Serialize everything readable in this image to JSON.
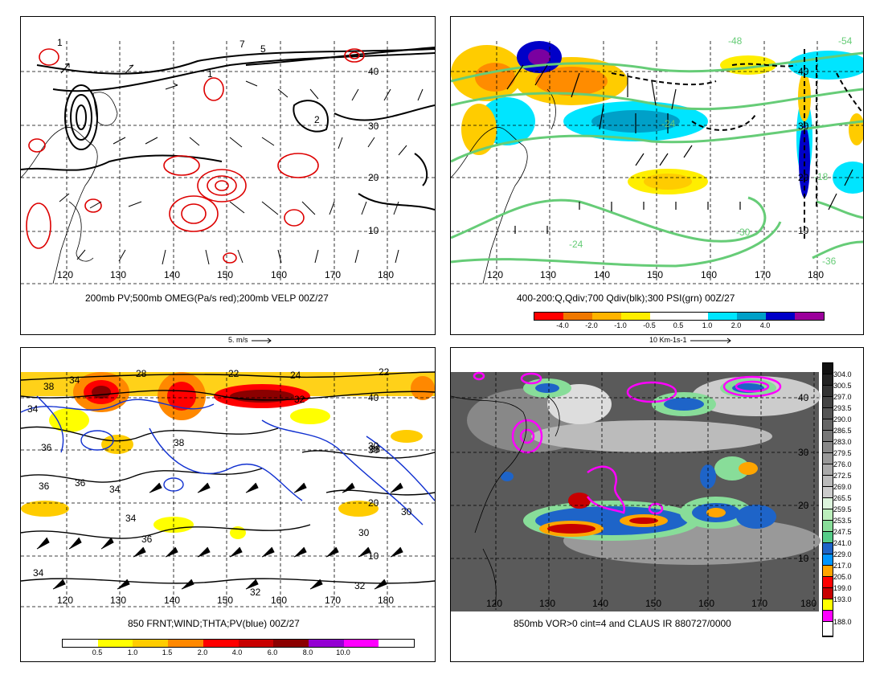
{
  "panels": {
    "tl": {
      "caption": "200mb PV;500mb OMEG(Pa/s red);200mb VELP 00Z/27",
      "scale": "5. m/s",
      "lons": [
        "120",
        "130",
        "140",
        "150",
        "160",
        "170",
        "180"
      ],
      "lats": [
        "40",
        "30",
        "20",
        "10"
      ],
      "contour_labels": [
        "1",
        "1",
        "7",
        "5",
        "2"
      ]
    },
    "tr": {
      "caption": "400-200:Q,Qdiv;700 Qdiv(blk);300 PSI(grn) 00Z/27",
      "scale": "10 Km-1s-1",
      "lons": [
        "120",
        "130",
        "140",
        "150",
        "160",
        "170",
        "180"
      ],
      "lats": [
        "40",
        "30",
        "20",
        "10"
      ],
      "psi_labels": [
        "-48",
        "-54",
        "-24",
        "-24",
        "-30",
        "-36",
        "-18"
      ],
      "colorbar": {
        "labels": [
          "-4.0",
          "-2.0",
          "-1.0",
          "-0.5",
          "0.5",
          "1.0",
          "2.0",
          "4.0"
        ],
        "colors": [
          "#ff0000",
          "#f07800",
          "#ffb400",
          "#ffee00",
          "#ffffff",
          "#ffffff",
          "#00e5ff",
          "#00a0c8",
          "#0000c8",
          "#9b009b"
        ]
      }
    },
    "bl": {
      "caption": "850 FRNT;WIND;THTA;PV(blue) 00Z/27",
      "lons": [
        "120",
        "130",
        "140",
        "150",
        "160",
        "170",
        "180"
      ],
      "lats": [
        "40",
        "30",
        "20",
        "10"
      ],
      "theta_labels": [
        "34",
        "28",
        "22",
        "24",
        "22",
        "38",
        "32",
        "34",
        "36",
        "38",
        "36",
        "34",
        "34",
        "36",
        "30",
        "30",
        "34",
        "32",
        "32",
        "38",
        "30",
        "36"
      ],
      "colorbar": {
        "labels": [
          "0.5",
          "1.0",
          "1.5",
          "2.0",
          "4.0",
          "6.0",
          "8.0",
          "10.0"
        ],
        "colors": [
          "#ffffff",
          "#ffff00",
          "#ffcc00",
          "#ff8800",
          "#ff0000",
          "#c80000",
          "#8b0000",
          "#9400d3",
          "#ff00ff",
          "#ffffff"
        ]
      }
    },
    "br": {
      "caption": "850mb VOR>0 cint=4 and CLAUS IR 880727/0000",
      "lons": [
        "120",
        "130",
        "140",
        "150",
        "160",
        "170",
        "180"
      ],
      "lats": [
        "40",
        "30",
        "20",
        "10"
      ],
      "colorbar": {
        "labels": [
          "304.0",
          "300.5",
          "297.0",
          "293.5",
          "290.0",
          "286.5",
          "283.0",
          "279.5",
          "276.0",
          "272.5",
          "269.0",
          "265.5",
          "259.5",
          "253.5",
          "247.5",
          "241.0",
          "229.0",
          "217.0",
          "205.0",
          "199.0",
          "193.0",
          "188.0"
        ],
        "colors": [
          "#111111",
          "#222222",
          "#333333",
          "#444444",
          "#555555",
          "#666666",
          "#777777",
          "#888888",
          "#999999",
          "#aaaaaa",
          "#bbbbbb",
          "#cccccc",
          "#ddf5dd",
          "#bbeebb",
          "#88dd99",
          "#55cc88",
          "#1e64c8",
          "#0096ff",
          "#ffa500",
          "#ff0000",
          "#c80000",
          "#ffff00",
          "#ff00ff",
          "#ffffff"
        ]
      }
    }
  }
}
